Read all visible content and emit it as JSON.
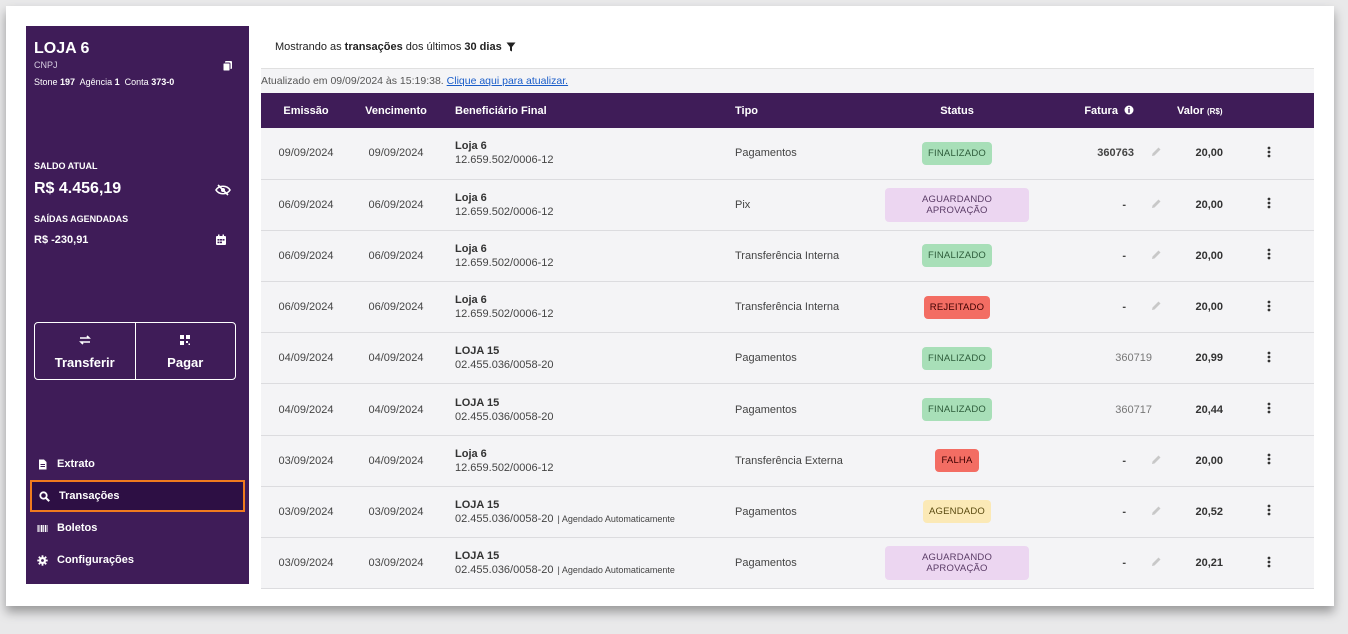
{
  "store": {
    "name": "LOJA 6",
    "cnpj_label": "CNPJ",
    "bank_label": "Stone",
    "bank_value": "197",
    "agency_label": "Agência",
    "agency_value": "1",
    "account_label": "Conta",
    "account_value": "373-0"
  },
  "balance": {
    "label": "SALDO ATUAL",
    "value": "R$ 4.456,19",
    "scheduled_label": "SAÍDAS AGENDADAS",
    "scheduled_value": "R$ -230,91"
  },
  "actions": {
    "transfer": "Transferir",
    "pay": "Pagar"
  },
  "nav": [
    {
      "label": "Extrato",
      "icon": "document-icon"
    },
    {
      "label": "Transações",
      "icon": "search-icon",
      "active": true
    },
    {
      "label": "Boletos",
      "icon": "barcode-icon"
    },
    {
      "label": "Configurações",
      "icon": "gear-icon"
    }
  ],
  "topbar": {
    "prefix": "Mostrando as",
    "bold1": "transações",
    "middle": "dos últimos",
    "bold2": "30 dias"
  },
  "updated": {
    "text": "Atualizado em 09/09/2024 às 15:19:38.",
    "link": "Clique aqui para atualizar."
  },
  "table": {
    "headers": {
      "emissao": "Emissão",
      "vencimento": "Vencimento",
      "beneficiario": "Beneficiário Final",
      "tipo": "Tipo",
      "status": "Status",
      "fatura": "Fatura",
      "valor": "Valor",
      "valor_unit": "(R$)"
    },
    "rows": [
      {
        "emissao": "09/09/2024",
        "vencimento": "09/09/2024",
        "name": "Loja 6",
        "doc": "12.659.502/0006-12",
        "note": "",
        "tipo": "Pagamentos",
        "status": "FINALIZADO",
        "fatura": "360763",
        "valor": "20,00"
      },
      {
        "emissao": "06/09/2024",
        "vencimento": "06/09/2024",
        "name": "Loja 6",
        "doc": "12.659.502/0006-12",
        "note": "",
        "tipo": "Pix",
        "status": "AGUARDANDO APROVAÇÃO",
        "fatura": "-",
        "valor": "20,00"
      },
      {
        "emissao": "06/09/2024",
        "vencimento": "06/09/2024",
        "name": "Loja 6",
        "doc": "12.659.502/0006-12",
        "note": "",
        "tipo": "Transferência Interna",
        "status": "FINALIZADO",
        "fatura": "-",
        "valor": "20,00"
      },
      {
        "emissao": "06/09/2024",
        "vencimento": "06/09/2024",
        "name": "Loja 6",
        "doc": "12.659.502/0006-12",
        "note": "",
        "tipo": "Transferência Interna",
        "status": "REJEITADO",
        "fatura": "-",
        "valor": "20,00"
      },
      {
        "emissao": "04/09/2024",
        "vencimento": "04/09/2024",
        "name": "LOJA 15",
        "doc": "02.455.036/0058-20",
        "note": "",
        "tipo": "Pagamentos",
        "status": "FINALIZADO",
        "fatura": "360719",
        "valor": "20,99"
      },
      {
        "emissao": "04/09/2024",
        "vencimento": "04/09/2024",
        "name": "LOJA 15",
        "doc": "02.455.036/0058-20",
        "note": "",
        "tipo": "Pagamentos",
        "status": "FINALIZADO",
        "fatura": "360717",
        "valor": "20,44"
      },
      {
        "emissao": "03/09/2024",
        "vencimento": "04/09/2024",
        "name": "Loja 6",
        "doc": "12.659.502/0006-12",
        "note": "",
        "tipo": "Transferência Externa",
        "status": "FALHA",
        "fatura": "-",
        "valor": "20,00"
      },
      {
        "emissao": "03/09/2024",
        "vencimento": "03/09/2024",
        "name": "LOJA 15",
        "doc": "02.455.036/0058-20",
        "note": "| Agendado Automaticamente",
        "tipo": "Pagamentos",
        "status": "AGENDADO",
        "fatura": "-",
        "valor": "20,52"
      },
      {
        "emissao": "03/09/2024",
        "vencimento": "03/09/2024",
        "name": "LOJA 15",
        "doc": "02.455.036/0058-20",
        "note": "| Agendado Automaticamente",
        "tipo": "Pagamentos",
        "status": "AGUARDANDO APROVAÇÃO",
        "fatura": "-",
        "valor": "20,21"
      }
    ]
  },
  "colors": {
    "sidebar": "#3f1c58",
    "header": "#3f1c58",
    "active_outline": "#f07b1f",
    "finalizado": "#a8dfb8",
    "aguardando": "#ecd6f1",
    "rejeitado": "#f36d63",
    "agendado": "#fbe9b6",
    "link": "#1a5dc9"
  }
}
